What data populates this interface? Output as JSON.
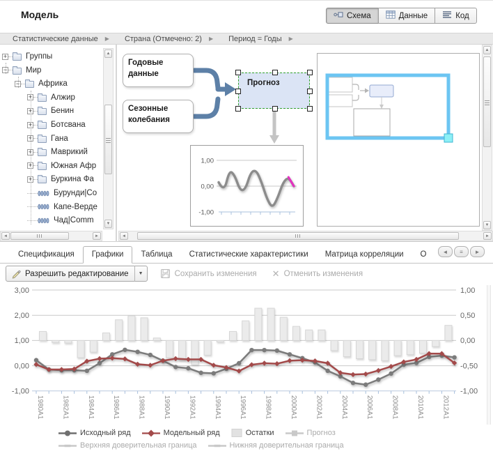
{
  "header": {
    "title": "Модель",
    "view_buttons": [
      {
        "label": "Схема",
        "icon": "schema-icon",
        "active": true
      },
      {
        "label": "Данные",
        "icon": "data-grid-icon",
        "active": false
      },
      {
        "label": "Код",
        "icon": "code-icon",
        "active": false
      }
    ]
  },
  "breadcrumb": {
    "items": [
      "Статистические данные",
      "Страна (Отмечено: 2)",
      "Период = Годы"
    ]
  },
  "tree": {
    "items": [
      {
        "label": "Группы",
        "level": 0,
        "expand": "+",
        "icon": "folder"
      },
      {
        "label": "Мир",
        "level": 0,
        "expand": "-",
        "icon": "folder"
      },
      {
        "label": "Африка",
        "level": 1,
        "expand": "-",
        "icon": "folder"
      },
      {
        "label": "Алжир",
        "level": 2,
        "expand": "+",
        "icon": "folder"
      },
      {
        "label": "Бенин",
        "level": 2,
        "expand": "+",
        "icon": "folder"
      },
      {
        "label": "Ботсвана",
        "level": 2,
        "expand": "+",
        "icon": "folder"
      },
      {
        "label": "Гана",
        "level": 2,
        "expand": "+",
        "icon": "folder"
      },
      {
        "label": "Маврикий",
        "level": 2,
        "expand": "+",
        "icon": "folder"
      },
      {
        "label": "Южная Афр",
        "level": 2,
        "expand": "+",
        "icon": "folder"
      },
      {
        "label": "Буркина Фа",
        "level": 2,
        "expand": "+",
        "icon": "folder"
      },
      {
        "label": "Бурунди|Co",
        "level": 2,
        "expand": null,
        "icon": "series"
      },
      {
        "label": "Капе-Верде",
        "level": 2,
        "expand": null,
        "icon": "series"
      },
      {
        "label": "Чад|Comm",
        "level": 2,
        "expand": null,
        "icon": "series"
      }
    ]
  },
  "diagram": {
    "node_annual": "Годовые данные",
    "node_seasonal": "Сезонные колебания",
    "node_forecast": "Прогноз",
    "arrow_color": "#5d80a7",
    "mini_chart": {
      "y_labels": [
        "1,00",
        "0,00",
        "-1,00"
      ],
      "values": [
        0.15,
        -0.25,
        0.62,
        0.42,
        -0.18,
        -0.12,
        0.55,
        0.62,
        0.15,
        -0.5,
        -0.85,
        -0.45,
        0.15,
        0.35
      ],
      "forecast_values": [
        0.35,
        0.0
      ],
      "line_color": "#8c8c8c",
      "forecast_color": "#e531c1"
    },
    "minimap": {
      "viewport_color": "#6cc5f2",
      "handle_color": "#8df0f6"
    }
  },
  "tabs": {
    "items": [
      {
        "label": "Спецификация",
        "active": false
      },
      {
        "label": "Графики",
        "active": true
      },
      {
        "label": "Таблица",
        "active": false
      },
      {
        "label": "Статистические характеристики",
        "active": false
      },
      {
        "label": "Матрица корреляции",
        "active": false
      },
      {
        "label": "О",
        "active": false
      }
    ]
  },
  "toolbar": {
    "edit_label": "Разрешить редактирование",
    "save_label": "Сохранить изменения",
    "cancel_label": "Отменить изменения"
  },
  "chart_data": {
    "type": "line+bar",
    "x_start": 1980,
    "x_step": 1,
    "x_tick_labels": [
      "1980A1",
      "1982A1",
      "1984A1",
      "1986A1",
      "1988A1",
      "1990A1",
      "1992A1",
      "1994A1",
      "1996A1",
      "1998A1",
      "2000A1",
      "2002A1",
      "2004A1",
      "2006A1",
      "2008A1",
      "2010A1",
      "2012A1"
    ],
    "left_axis": {
      "min": -1,
      "max": 3,
      "labels": [
        "3,00",
        "2,00",
        "1,00",
        "0,00",
        "-1,00"
      ]
    },
    "right_axis": {
      "min": -1,
      "max": 1,
      "labels": [
        "1,00",
        "0,50",
        "0,00",
        "-0,50",
        "-1,00"
      ]
    },
    "grid": true,
    "legend_position": "bottom",
    "series": [
      {
        "name": "Исходный ряд",
        "type": "line",
        "marker": "circle",
        "color": "#7b7b7b",
        "axis": "left",
        "values": [
          0.22,
          -0.15,
          -0.18,
          -0.18,
          -0.2,
          0.1,
          0.45,
          0.63,
          0.55,
          0.43,
          0.2,
          -0.05,
          -0.1,
          -0.28,
          -0.3,
          -0.12,
          0.1,
          0.62,
          0.62,
          0.6,
          0.45,
          0.3,
          0.13,
          -0.2,
          -0.42,
          -0.68,
          -0.75,
          -0.55,
          -0.31,
          0.04,
          0.11,
          0.35,
          0.4,
          0.33
        ]
      },
      {
        "name": "Модельный ряд",
        "type": "line",
        "marker": "diamond",
        "color": "#a34a4a",
        "axis": "left",
        "values": [
          0.05,
          -0.15,
          -0.15,
          -0.13,
          0.18,
          0.28,
          0.3,
          0.27,
          0.06,
          0.02,
          0.2,
          0.28,
          0.25,
          0.25,
          0.02,
          -0.07,
          -0.21,
          0.04,
          0.1,
          0.08,
          0.2,
          0.22,
          0.19,
          0.1,
          -0.28,
          -0.35,
          -0.33,
          -0.19,
          -0.03,
          0.15,
          0.25,
          0.48,
          0.48,
          0.11
        ]
      },
      {
        "name": "Остатки",
        "type": "bar",
        "color": "#ebebeb",
        "border_color": "#d6d6d6",
        "axis": "right",
        "values": [
          0.18,
          -0.04,
          -0.05,
          -0.34,
          -0.23,
          0.15,
          0.41,
          0.49,
          0.45,
          0.05,
          -0.34,
          -0.39,
          -0.48,
          -0.29,
          -0.03,
          0.18,
          0.39,
          0.64,
          0.64,
          0.46,
          0.28,
          0.21,
          0.21,
          -0.2,
          -0.32,
          -0.36,
          -0.38,
          -0.4,
          -0.3,
          -0.28,
          -0.25,
          -0.12,
          0.3,
          null
        ]
      }
    ]
  },
  "legend": {
    "items": [
      {
        "label": "Исходный ряд",
        "marker": "circle",
        "color": "#6f6f6f",
        "disabled": false
      },
      {
        "label": "Модельный ряд",
        "marker": "diamond",
        "color": "#a34a4a",
        "disabled": false
      },
      {
        "label": "Остатки",
        "marker": "square",
        "color": "#e2e2e2",
        "disabled": false
      },
      {
        "label": "Прогноз",
        "marker": "square-line",
        "color": "#c9c9c9",
        "disabled": true
      },
      {
        "label": "Верхняя доверительная граница",
        "marker": "tick-line",
        "color": "#c9c9c9",
        "disabled": true
      },
      {
        "label": "Нижняя доверительная граница",
        "marker": "tick-line",
        "color": "#c9c9c9",
        "disabled": true
      }
    ]
  }
}
